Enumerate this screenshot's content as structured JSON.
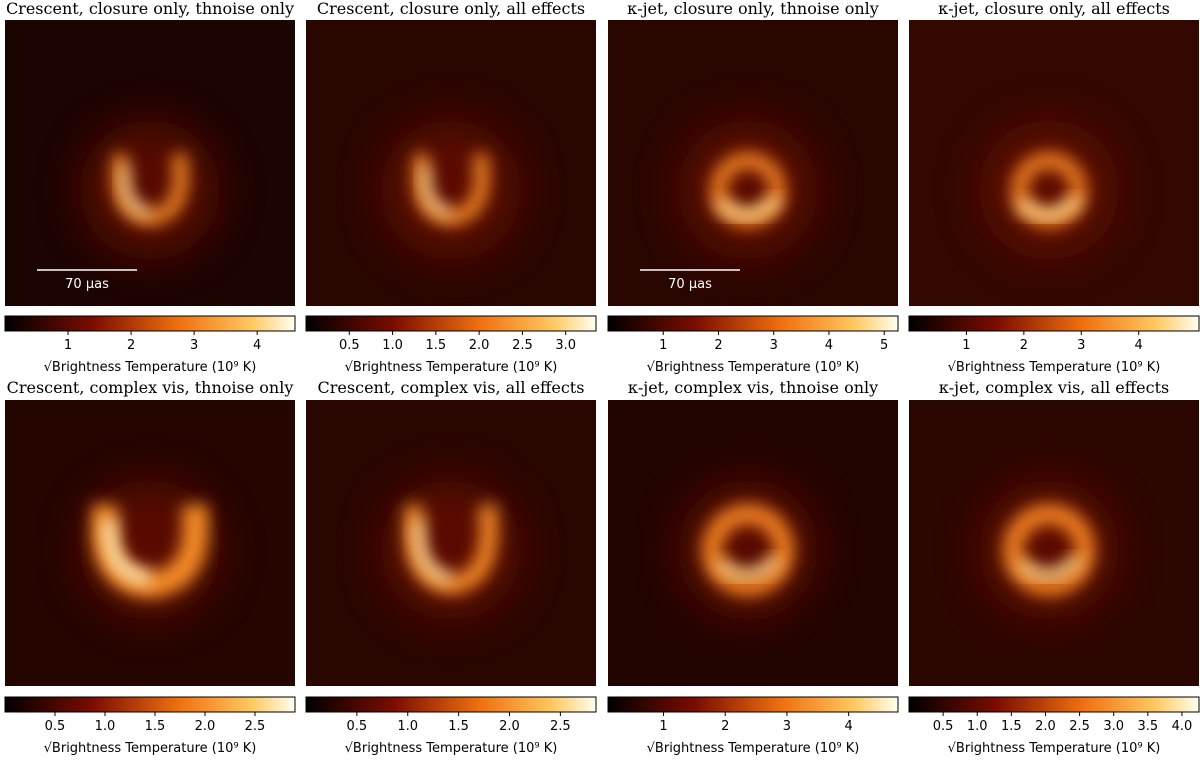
{
  "panels": [
    {
      "title": "Crescent, closure only, thnoise only",
      "clim": [
        0,
        4.6
      ],
      "ticks": [
        1,
        2,
        3,
        4
      ],
      "label": "√Brightness Temperature (10⁹ K)",
      "scalebar": "70 μas"
    },
    {
      "title": "Crescent, closure only, all effects",
      "clim": [
        0,
        3.35
      ],
      "ticks": [
        0.5,
        {
          "value": 1,
          "label": "1.0"
        },
        1.5,
        {
          "value": 2,
          "label": "2.0"
        },
        2.5,
        {
          "value": 3,
          "label": "3.0"
        }
      ],
      "label": "√Brightness Temperature (10⁹ K)"
    },
    {
      "title": "κ-jet, closure only, thnoise only",
      "clim": [
        0,
        5.25
      ],
      "ticks": [
        1,
        2,
        3,
        4,
        5
      ],
      "label": "√Brightness Temperature (10⁹ K)",
      "scalebar": "70 μas"
    },
    {
      "title": "κ-jet, closure only, all effects",
      "clim": [
        0,
        5.05
      ],
      "ticks": [
        1,
        2,
        3,
        4
      ],
      "label": "√Brightness Temperature (10⁹ K)"
    },
    {
      "title": "Crescent, complex vis, thnoise only",
      "clim": [
        0,
        2.9
      ],
      "ticks": [
        0.5,
        {
          "value": 1,
          "label": "1.0"
        },
        1.5,
        {
          "value": 2,
          "label": "2.0"
        },
        2.5
      ],
      "label": "√Brightness Temperature (10⁹ K)"
    },
    {
      "title": "Crescent, complex vis, all effects",
      "clim": [
        0,
        2.85
      ],
      "ticks": [
        0.5,
        {
          "value": 1,
          "label": "1.0"
        },
        1.5,
        {
          "value": 2,
          "label": "2.0"
        },
        2.5
      ],
      "label": "√Brightness Temperature (10⁹ K)"
    },
    {
      "title": "κ-jet, complex vis, thnoise only",
      "clim": [
        0.1,
        4.8
      ],
      "ticks": [
        1,
        2,
        3,
        4
      ],
      "label": "√Brightness Temperature (10⁹ K)"
    },
    {
      "title": "κ-jet, complex vis, all effects",
      "clim": [
        0,
        4.25
      ],
      "ticks": [
        0.5,
        {
          "value": 1,
          "label": "1.0"
        },
        1.5,
        {
          "value": 2,
          "label": "2.0"
        },
        2.5,
        {
          "value": 3,
          "label": "3.0"
        },
        3.5,
        {
          "value": 4,
          "label": "4.0"
        }
      ],
      "label": "√Brightness Temperature (10⁹ K)"
    }
  ]
}
